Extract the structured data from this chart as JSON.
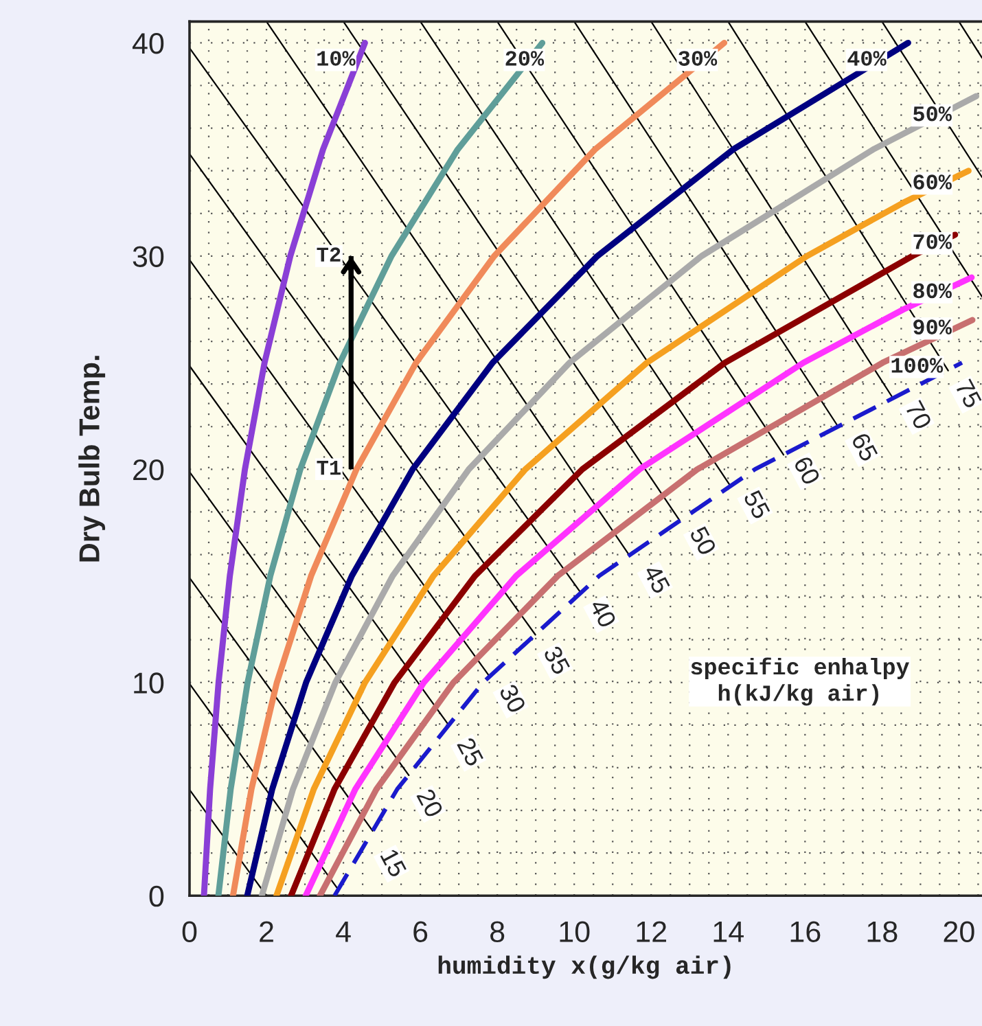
{
  "chart_data": {
    "type": "line",
    "xlabel": "humidity x(g/kg air)",
    "ylabel": "Dry Bulb Temp.",
    "xlim": [
      0,
      20.6
    ],
    "ylim": [
      0,
      41
    ],
    "xticks": [
      0,
      2,
      4,
      6,
      8,
      10,
      12,
      14,
      16,
      18,
      20
    ],
    "yticks": [
      0,
      10,
      20,
      30,
      40
    ],
    "grid": true,
    "marker": "none",
    "series": [
      {
        "color": "#8a3fd6",
        "x": [
          0.375,
          0.535,
          0.755,
          1.048,
          1.44,
          1.95,
          2.62,
          3.47,
          4.56
        ],
        "values": [
          0,
          5,
          10,
          15,
          20,
          25,
          30,
          35,
          40
        ]
      },
      {
        "color": "#5f9e99",
        "x": [
          0.75,
          1.07,
          1.51,
          2.1,
          2.88,
          3.91,
          5.25,
          6.97,
          9.17
        ],
        "values": [
          0,
          5,
          10,
          15,
          20,
          25,
          30,
          35,
          40
        ]
      },
      {
        "color": "#f08a5a",
        "x": [
          1.13,
          1.61,
          2.27,
          3.16,
          4.34,
          5.89,
          7.92,
          10.54,
          13.9
        ],
        "values": [
          0,
          5,
          10,
          15,
          20,
          25,
          30,
          35,
          40
        ]
      },
      {
        "color": "#000080",
        "x": [
          1.5,
          2.15,
          3.03,
          4.22,
          5.8,
          7.88,
          10.6,
          14.13,
          18.68
        ],
        "values": [
          0,
          5,
          10,
          15,
          20,
          25,
          30,
          35,
          40
        ]
      },
      {
        "color": "#aaaaaa",
        "x": [
          1.88,
          2.69,
          3.79,
          5.28,
          7.26,
          9.88,
          13.31,
          17.77,
          20.45
        ],
        "values": [
          0,
          5,
          10,
          15,
          20,
          25,
          30,
          35,
          37.5
        ]
      },
      {
        "color": "#f5a020",
        "x": [
          2.26,
          3.23,
          4.56,
          6.34,
          8.73,
          11.89,
          16.05,
          18.55,
          20.25
        ],
        "values": [
          0,
          5,
          10,
          15,
          20,
          25,
          30,
          32.5,
          34
        ]
      },
      {
        "color": "#8b0000",
        "x": [
          2.64,
          3.77,
          5.33,
          7.42,
          10.21,
          13.92,
          18.79,
          19.9
        ],
        "values": [
          0,
          5,
          10,
          15,
          20,
          25,
          30,
          31
        ]
      },
      {
        "color": "#ff33ff",
        "x": [
          3.02,
          4.31,
          6.09,
          8.49,
          11.7,
          15.96,
          18.56,
          20.33
        ],
        "values": [
          0,
          5,
          10,
          15,
          20,
          25,
          27.5,
          29
        ]
      },
      {
        "color": "#c87070",
        "x": [
          3.39,
          4.86,
          6.86,
          9.57,
          13.2,
          18.02,
          20.35
        ],
        "values": [
          0,
          5,
          10,
          15,
          20,
          25,
          27
        ]
      },
      {
        "color": "#1a1acc",
        "line_style": "dashed",
        "x": [
          3.77,
          5.4,
          7.63,
          10.65,
          14.7,
          20.08
        ],
        "values": [
          0,
          5,
          10,
          15,
          20,
          25
        ]
      },
      {
        "color": "#000000",
        "x": [
          4.2,
          4.2
        ],
        "values": [
          20,
          30
        ]
      },
      {
        "color": "#000000",
        "x": [
          0,
          2.0
        ],
        "values": [
          4.97,
          0
        ]
      },
      {
        "color": "#000000",
        "x": [
          0,
          3.86
        ],
        "values": [
          9.94,
          0.3
        ]
      },
      {
        "color": "#000000",
        "x": [
          0,
          4.76
        ],
        "values": [
          14.91,
          3.04
        ]
      },
      {
        "color": "#000000",
        "x": [
          0,
          5.7
        ],
        "values": [
          19.88,
          5.65
        ]
      },
      {
        "color": "#000000",
        "x": [
          0,
          6.74
        ],
        "values": [
          24.85,
          7.99
        ]
      },
      {
        "color": "#000000",
        "x": [
          0,
          7.8
        ],
        "values": [
          29.82,
          10.28
        ]
      },
      {
        "color": "#000000",
        "x": [
          0,
          8.99
        ],
        "values": [
          34.79,
          12.24
        ]
      },
      {
        "color": "#000000",
        "x": [
          0,
          10.17
        ],
        "values": [
          39.76,
          14.21
        ]
      },
      {
        "color": "#000000",
        "x": [
          2.0,
          11.43
        ],
        "values": [
          41,
          15.97
        ]
      },
      {
        "color": "#000000",
        "x": [
          4.0,
          12.74
        ],
        "values": [
          41,
          17.6
        ]
      },
      {
        "color": "#000000",
        "x": [
          6.0,
          14.06
        ],
        "values": [
          41,
          19.22
        ]
      },
      {
        "color": "#000000",
        "x": [
          8.0,
          15.44
        ],
        "values": [
          41,
          20.68
        ]
      },
      {
        "color": "#000000",
        "x": [
          10.0,
          16.86
        ],
        "values": [
          41,
          22.0
        ]
      },
      {
        "color": "#000000",
        "x": [
          12.0,
          18.29
        ],
        "values": [
          41,
          23.32
        ]
      },
      {
        "color": "#000000",
        "x": [
          14.0,
          19.72
        ],
        "values": [
          41,
          24.63
        ]
      },
      {
        "color": "#000000",
        "x": [
          16.0,
          20.6
        ],
        "values": [
          41,
          28.1
        ]
      },
      {
        "color": "#000000",
        "x": [
          18.0,
          20.6
        ],
        "values": [
          41,
          33.7
        ]
      },
      {
        "color": "#000000",
        "x": [
          20.0,
          20.6
        ],
        "values": [
          41,
          39.3
        ]
      }
    ],
    "annotations": [
      {
        "text": "T1",
        "x": 4.2,
        "y": 20
      },
      {
        "text": "T2",
        "x": 4.2,
        "y": 30
      },
      {
        "text": "10%",
        "x": 3.8,
        "y": 39.2
      },
      {
        "text": "20%",
        "x": 8.7,
        "y": 39.2
      },
      {
        "text": "30%",
        "x": 13.2,
        "y": 39.2
      },
      {
        "text": "40%",
        "x": 17.6,
        "y": 39.2
      },
      {
        "text": "50%",
        "x": 19.3,
        "y": 36.6
      },
      {
        "text": "60%",
        "x": 19.3,
        "y": 33.4
      },
      {
        "text": "70%",
        "x": 19.3,
        "y": 30.6
      },
      {
        "text": "80%",
        "x": 19.3,
        "y": 28.3
      },
      {
        "text": "90%",
        "x": 19.3,
        "y": 26.6
      },
      {
        "text": "100%",
        "x": 18.9,
        "y": 24.8
      },
      {
        "text": "15",
        "x": 5.25,
        "y": 1.5
      },
      {
        "text": "20",
        "x": 6.2,
        "y": 4.3
      },
      {
        "text": "25",
        "x": 7.25,
        "y": 6.7
      },
      {
        "text": "30",
        "x": 8.35,
        "y": 9.2
      },
      {
        "text": "35",
        "x": 9.5,
        "y": 11.0
      },
      {
        "text": "40",
        "x": 10.7,
        "y": 13.2
      },
      {
        "text": "45",
        "x": 12.1,
        "y": 14.8
      },
      {
        "text": "50",
        "x": 13.3,
        "y": 16.6
      },
      {
        "text": "55",
        "x": 14.7,
        "y": 18.3
      },
      {
        "text": "60",
        "x": 16.0,
        "y": 19.9
      },
      {
        "text": "65",
        "x": 17.5,
        "y": 21.0
      },
      {
        "text": "70",
        "x": 18.9,
        "y": 22.5
      },
      {
        "text": "75",
        "x": 20.2,
        "y": 23.5
      },
      "specific enhalpy\nh(kJ/kg air)"
    ]
  }
}
